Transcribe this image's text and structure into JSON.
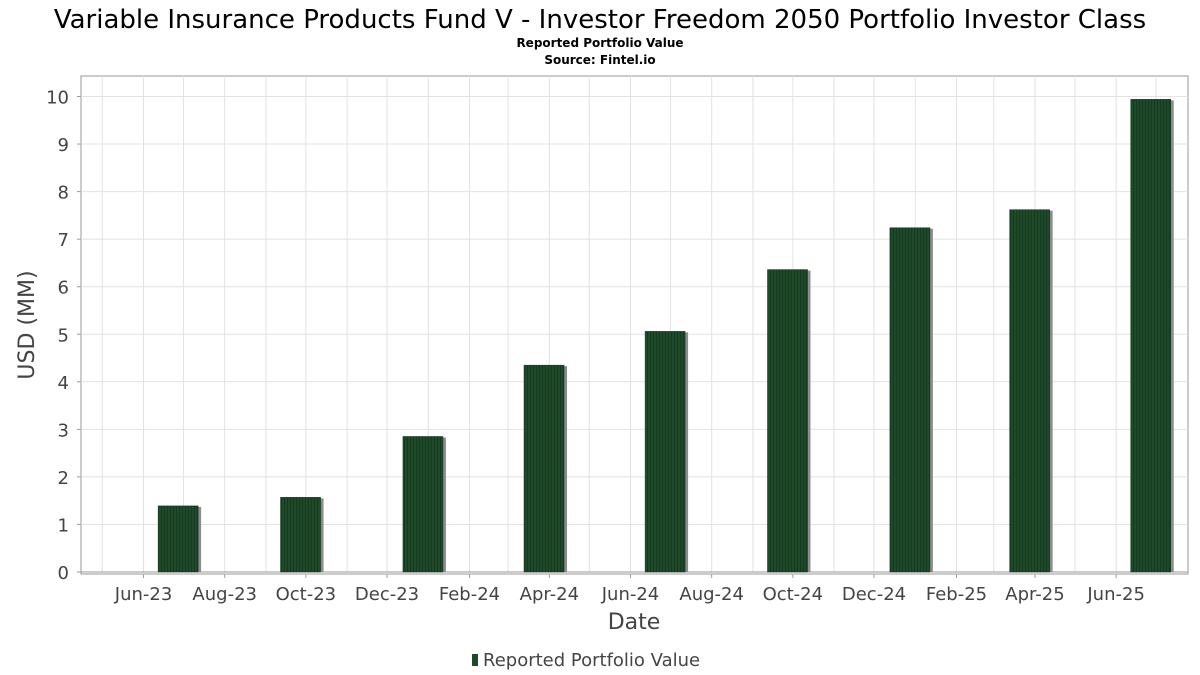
{
  "chart_data": {
    "type": "bar",
    "title": "Variable Insurance Products Fund V - Investor Freedom 2050 Portfolio Investor Class",
    "subtitle": "Reported Portfolio Value",
    "source": "Source: Fintel.io",
    "xlabel": "Date",
    "ylabel": "USD (MM)",
    "ylim": [
      0,
      10.5
    ],
    "yticks": [
      "0",
      "1",
      "2",
      "3",
      "4",
      "5",
      "6",
      "7",
      "8",
      "9",
      "10"
    ],
    "x_tick_labels": [
      "Jun-23",
      "Aug-23",
      "Oct-23",
      "Dec-23",
      "Feb-24",
      "Apr-24",
      "Jun-24",
      "Aug-24",
      "Oct-24",
      "Dec-24",
      "Feb-25",
      "Apr-25",
      "Jun-25"
    ],
    "x_range": [
      "2023-04-15",
      "2025-07-25"
    ],
    "x_tick_dates": [
      "2023-06-01",
      "2023-08-01",
      "2023-10-01",
      "2023-12-01",
      "2024-02-01",
      "2024-04-01",
      "2024-06-01",
      "2024-08-01",
      "2024-10-01",
      "2024-12-01",
      "2025-02-01",
      "2025-04-01",
      "2025-06-01"
    ],
    "grid": true,
    "legend_position": "bottom-center",
    "series": [
      {
        "name": "Reported Portfolio Value",
        "color": "#1e4a2a",
        "points": [
          {
            "date": "2023-06-30",
            "value": 1.39
          },
          {
            "date": "2023-09-30",
            "value": 1.57
          },
          {
            "date": "2023-12-31",
            "value": 2.85
          },
          {
            "date": "2024-03-31",
            "value": 4.35
          },
          {
            "date": "2024-06-30",
            "value": 5.06
          },
          {
            "date": "2024-09-30",
            "value": 6.36
          },
          {
            "date": "2024-12-31",
            "value": 7.24
          },
          {
            "date": "2025-03-31",
            "value": 7.62
          },
          {
            "date": "2025-06-30",
            "value": 9.94
          }
        ]
      }
    ]
  }
}
